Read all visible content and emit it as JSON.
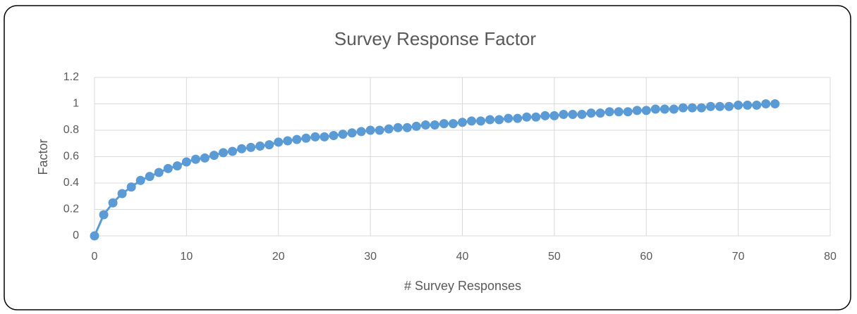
{
  "chart_data": {
    "type": "line",
    "title": "Survey Response Factor",
    "x_label": "# Survey Responses",
    "y_label": "Factor",
    "x": [
      0,
      1,
      2,
      3,
      4,
      5,
      6,
      7,
      8,
      9,
      10,
      11,
      12,
      13,
      14,
      15,
      16,
      17,
      18,
      19,
      20,
      21,
      22,
      23,
      24,
      25,
      26,
      27,
      28,
      29,
      30,
      31,
      32,
      33,
      34,
      35,
      36,
      37,
      38,
      39,
      40,
      41,
      42,
      43,
      44,
      45,
      46,
      47,
      48,
      49,
      50,
      51,
      52,
      53,
      54,
      55,
      56,
      57,
      58,
      59,
      60,
      61,
      62,
      63,
      64,
      65,
      66,
      67,
      68,
      69,
      70,
      71,
      72,
      73,
      74
    ],
    "values": [
      0,
      0.16,
      0.25,
      0.32,
      0.37,
      0.42,
      0.45,
      0.48,
      0.51,
      0.53,
      0.56,
      0.58,
      0.59,
      0.61,
      0.63,
      0.64,
      0.66,
      0.67,
      0.68,
      0.69,
      0.71,
      0.72,
      0.73,
      0.74,
      0.75,
      0.75,
      0.76,
      0.77,
      0.78,
      0.79,
      0.8,
      0.8,
      0.81,
      0.82,
      0.82,
      0.83,
      0.84,
      0.84,
      0.85,
      0.85,
      0.86,
      0.87,
      0.87,
      0.88,
      0.88,
      0.89,
      0.89,
      0.9,
      0.9,
      0.91,
      0.91,
      0.92,
      0.92,
      0.92,
      0.93,
      0.93,
      0.94,
      0.94,
      0.94,
      0.95,
      0.95,
      0.96,
      0.96,
      0.96,
      0.97,
      0.97,
      0.97,
      0.98,
      0.98,
      0.98,
      0.99,
      0.99,
      0.99,
      1,
      1
    ],
    "color": "#5b9bd5",
    "xlim": [
      0,
      80
    ],
    "xticks": [
      0,
      10,
      20,
      30,
      40,
      50,
      60,
      70,
      80
    ],
    "ylim": [
      0,
      1.2
    ],
    "yticks": [
      0,
      0.2,
      0.4,
      0.6,
      0.8,
      1,
      1.2
    ],
    "grid": true
  }
}
